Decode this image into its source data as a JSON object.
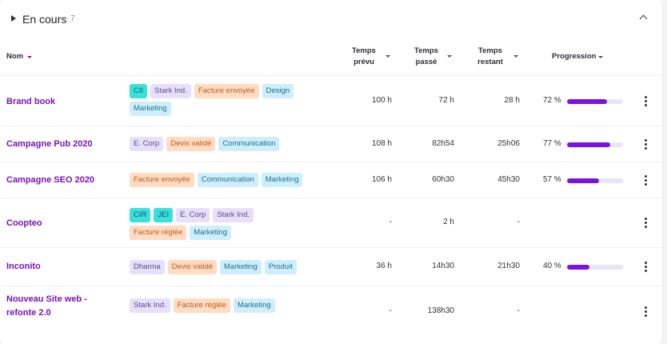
{
  "section": {
    "title": "En cours",
    "count": "- 7"
  },
  "columns": {
    "name": "Nom",
    "planned": [
      "Temps",
      "prévu"
    ],
    "spent": [
      "Temps",
      "passé"
    ],
    "remaining": [
      "Temps",
      "restant"
    ],
    "progress": "Progression"
  },
  "colors": {
    "accent": "#7a12b5",
    "progress_fill": "#7b12e0",
    "tag_teal": [
      "#3ae0dd",
      "#0b5d5b"
    ],
    "tag_violet": [
      "#e7e0fa",
      "#5a4a8a"
    ],
    "tag_orange": [
      "#ffdcc2",
      "#c2591a"
    ],
    "tag_blue": [
      "#cdeefa",
      "#1f6f93"
    ]
  },
  "icons": [
    "caret-right-icon",
    "chevron-up-icon",
    "sort-caret-icon",
    "kebab-menu-icon"
  ],
  "rows": [
    {
      "name": "Brand book",
      "tags": [
        {
          "label": "CII",
          "color": "teal"
        },
        {
          "label": "Stark Ind.",
          "color": "violet"
        },
        {
          "label": "Facture envoyée",
          "color": "orange"
        },
        {
          "label": "Design",
          "color": "blue"
        },
        {
          "label": "Marketing",
          "color": "blue"
        }
      ],
      "planned": "100 h",
      "spent": "72 h",
      "remaining": "28 h",
      "progress_label": "72 %",
      "progress": 72
    },
    {
      "name": "Campagne Pub 2020",
      "tags": [
        {
          "label": "E. Corp",
          "color": "violet"
        },
        {
          "label": "Devis validé",
          "color": "orange"
        },
        {
          "label": "Communication",
          "color": "blue"
        }
      ],
      "planned": "108 h",
      "spent": "82h54",
      "remaining": "25h06",
      "progress_label": "77 %",
      "progress": 77
    },
    {
      "name": "Campagne SEO 2020",
      "tags": [
        {
          "label": "Facture envoyée",
          "color": "orange"
        },
        {
          "label": "Communication",
          "color": "blue"
        },
        {
          "label": "Marketing",
          "color": "blue"
        }
      ],
      "planned": "106 h",
      "spent": "60h30",
      "remaining": "45h30",
      "progress_label": "57 %",
      "progress": 57
    },
    {
      "name": "Coopteo",
      "tags": [
        {
          "label": "CIR",
          "color": "teal"
        },
        {
          "label": "JEI",
          "color": "teal"
        },
        {
          "label": "E. Corp",
          "color": "violet"
        },
        {
          "label": "Stark Ind.",
          "color": "violet"
        },
        {
          "label": "Facture réglée",
          "color": "orange"
        },
        {
          "label": "Marketing",
          "color": "blue"
        }
      ],
      "planned": "-",
      "spent": "2 h",
      "remaining": "-",
      "progress_label": "",
      "progress": null
    },
    {
      "name": "Inconito",
      "tags": [
        {
          "label": "Dharma",
          "color": "violet"
        },
        {
          "label": "Devis validé",
          "color": "orange"
        },
        {
          "label": "Marketing",
          "color": "blue"
        },
        {
          "label": "Produit",
          "color": "blue"
        }
      ],
      "planned": "36 h",
      "spent": "14h30",
      "remaining": "21h30",
      "progress_label": "40 %",
      "progress": 40
    },
    {
      "name": "Nouveau Site web - refonte 2.0",
      "tags": [
        {
          "label": "Stark Ind.",
          "color": "violet"
        },
        {
          "label": "Facture réglée",
          "color": "orange"
        },
        {
          "label": "Marketing",
          "color": "blue"
        }
      ],
      "planned": "-",
      "spent": "138h30",
      "remaining": "-",
      "progress_label": "",
      "progress": null
    }
  ]
}
